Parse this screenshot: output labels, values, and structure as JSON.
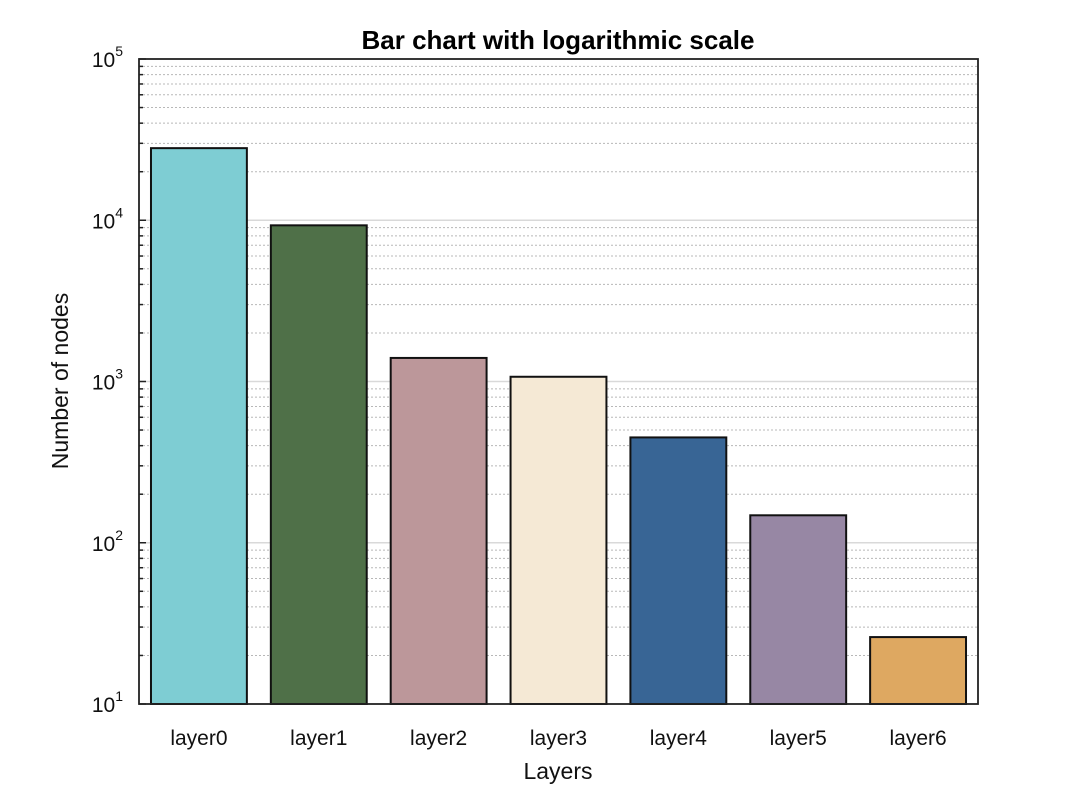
{
  "chart_data": {
    "type": "bar",
    "title": "Bar chart with logarithmic scale",
    "xlabel": "Layers",
    "ylabel": "Number of nodes",
    "yscale": "log",
    "ylim": [
      10,
      100000
    ],
    "grid": true,
    "categories": [
      "layer0",
      "layer1",
      "layer2",
      "layer3",
      "layer4",
      "layer5",
      "layer6"
    ],
    "values": [
      28000,
      9300,
      1400,
      1070,
      450,
      148,
      26
    ],
    "colors": [
      "#7ecdd3",
      "#4f7048",
      "#bc979a",
      "#f5e9d5",
      "#386595",
      "#9787a4",
      "#dea861"
    ],
    "yticks": [
      {
        "base": "10",
        "exp": "1"
      },
      {
        "base": "10",
        "exp": "2"
      },
      {
        "base": "10",
        "exp": "3"
      },
      {
        "base": "10",
        "exp": "4"
      },
      {
        "base": "10",
        "exp": "5"
      }
    ]
  }
}
